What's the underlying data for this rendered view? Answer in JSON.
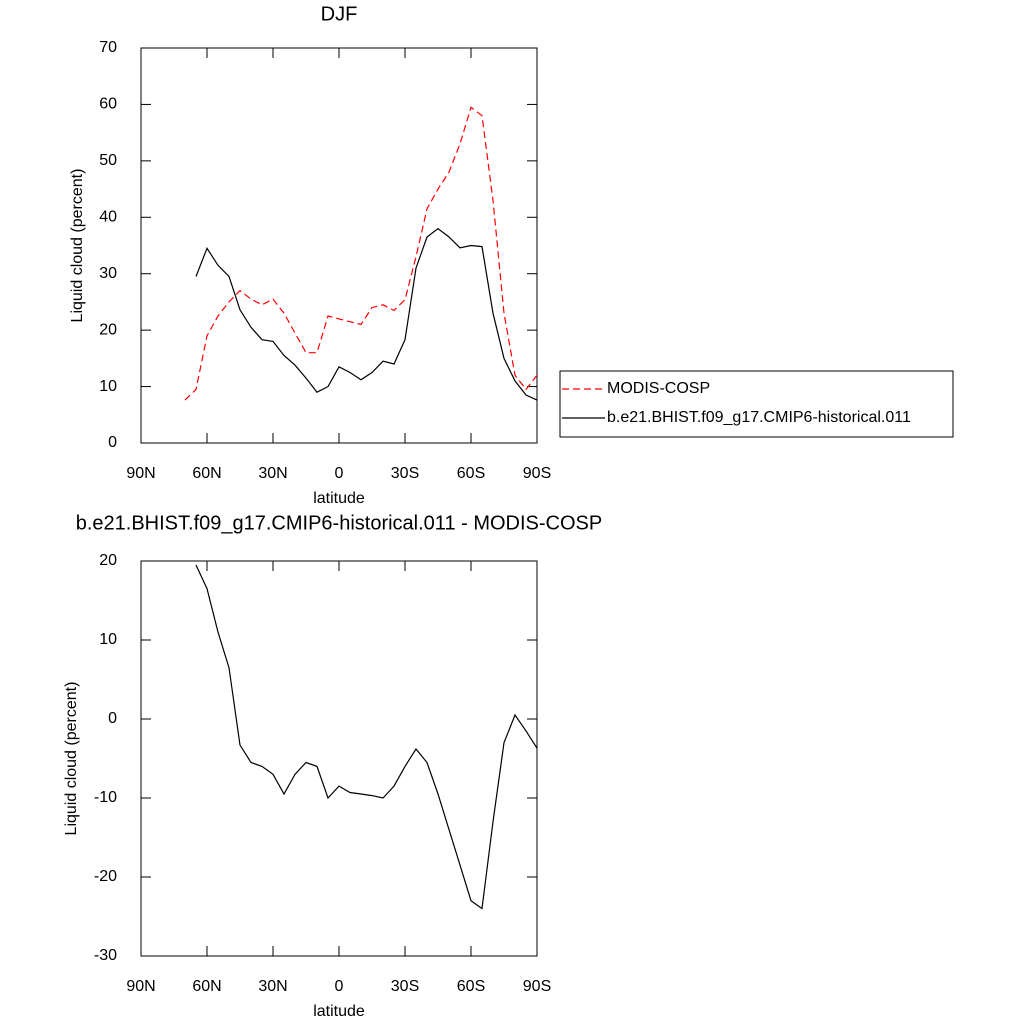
{
  "chart_data": [
    {
      "type": "line",
      "title": "DJF",
      "xlabel": "latitude",
      "ylabel": "Liquid cloud (percent)",
      "x": [
        70,
        65,
        60,
        55,
        50,
        45,
        40,
        35,
        30,
        25,
        20,
        15,
        10,
        5,
        0,
        -5,
        -10,
        -15,
        -20,
        -25,
        -30,
        -35,
        -40,
        -45,
        -50,
        -55,
        -60,
        -65,
        -70,
        -75,
        -80,
        -85,
        -90
      ],
      "xlim": [
        90,
        -90
      ],
      "xticks": [
        {
          "value": 90,
          "label": "90N"
        },
        {
          "value": 60,
          "label": "60N"
        },
        {
          "value": 30,
          "label": "30N"
        },
        0,
        {
          "value": -30,
          "label": "30S"
        },
        {
          "value": -60,
          "label": "60S"
        },
        {
          "value": -90,
          "label": "90S"
        }
      ],
      "ylim": [
        0,
        70
      ],
      "yticks": [
        0,
        10,
        20,
        30,
        40,
        50,
        60,
        70
      ],
      "series": [
        {
          "name": "MODIS-COSP",
          "color": "#ff0000",
          "dashed": true,
          "values": [
            7.6,
            9.5,
            19,
            22.5,
            25,
            27,
            25.5,
            24.5,
            25.5,
            23,
            19.5,
            16,
            16,
            22.5,
            22,
            21.5,
            21,
            24,
            24.5,
            23.5,
            25.4,
            33,
            41.5,
            45,
            48,
            53,
            59.5,
            58,
            43,
            23,
            12,
            9.5,
            12
          ]
        },
        {
          "name": "b.e21.BHIST.f09_g17.CMIP6-historical.011",
          "color": "#000000",
          "dashed": false,
          "values": [
            null,
            29.5,
            34.5,
            31.5,
            29.5,
            23.6,
            20.5,
            18.3,
            18,
            15.5,
            13.8,
            11.5,
            9,
            10,
            13.5,
            12.5,
            11.2,
            12.5,
            14.5,
            14,
            18.3,
            31,
            36.5,
            38,
            36.5,
            34.6,
            35,
            34.8,
            23,
            15,
            11,
            8.5,
            7.6
          ]
        }
      ]
    },
    {
      "type": "line",
      "title": "b.e21.BHIST.f09_g17.CMIP6-historical.011 - MODIS-COSP",
      "xlabel": "latitude",
      "ylabel": "Liquid cloud (percent)",
      "x": [
        70,
        65,
        60,
        55,
        50,
        45,
        40,
        35,
        30,
        25,
        20,
        15,
        10,
        5,
        0,
        -5,
        -10,
        -15,
        -20,
        -25,
        -30,
        -35,
        -40,
        -45,
        -50,
        -55,
        -60,
        -65,
        -70,
        -75,
        -80,
        -85,
        -90
      ],
      "xlim": [
        90,
        -90
      ],
      "xticks": [
        {
          "value": 90,
          "label": "90N"
        },
        {
          "value": 60,
          "label": "60N"
        },
        {
          "value": 30,
          "label": "30N"
        },
        0,
        {
          "value": -30,
          "label": "30S"
        },
        {
          "value": -60,
          "label": "60S"
        },
        {
          "value": -90,
          "label": "90S"
        }
      ],
      "ylim": [
        -30,
        20
      ],
      "yticks": [
        -30,
        -20,
        -10,
        0,
        10,
        20
      ],
      "series": [
        {
          "color": "#000000",
          "dashed": false,
          "values": [
            null,
            19.5,
            16.5,
            11,
            6.5,
            -3.3,
            -5.5,
            -6,
            -7,
            -9.5,
            -7,
            -5.5,
            -6,
            -10,
            -8.5,
            -9.3,
            -9.5,
            -9.7,
            -10,
            -8.5,
            -6,
            -3.8,
            -5.5,
            -9.5,
            -14,
            -18.5,
            -23,
            -24,
            -13,
            -3,
            0.5,
            -1.5,
            -3.7
          ]
        }
      ]
    }
  ]
}
